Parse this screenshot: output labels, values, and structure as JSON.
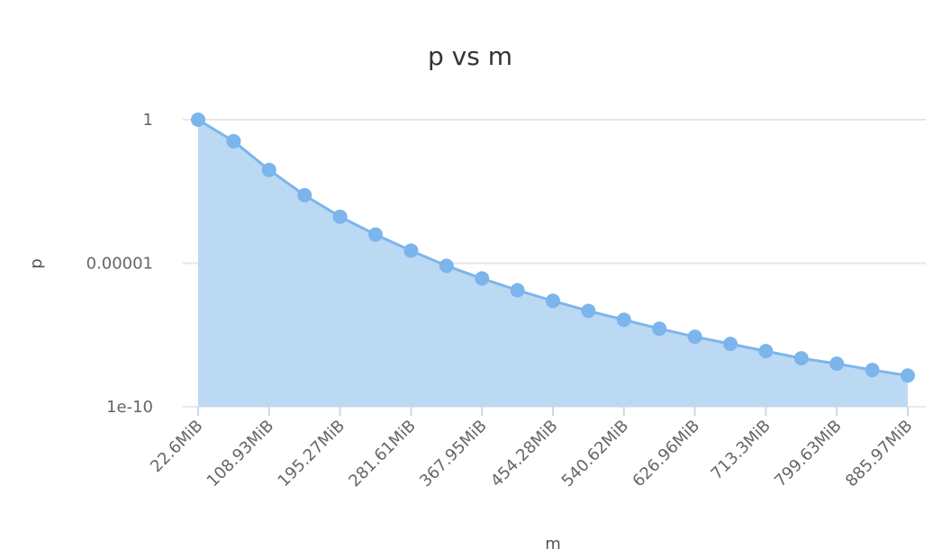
{
  "chart_data": {
    "type": "area",
    "title": "p vs m",
    "xlabel": "m",
    "ylabel": "p",
    "yscale": "log",
    "ylim": [
      1e-10,
      1
    ],
    "ytick_labels": [
      "1",
      "0.00001",
      "1e-10"
    ],
    "ytick_values": [
      1,
      1e-05,
      1e-10
    ],
    "xlim": [
      22.6,
      885.97
    ],
    "xtick_values": [
      22.6,
      108.93,
      195.27,
      281.61,
      367.95,
      454.28,
      540.62,
      626.96,
      713.3,
      799.63,
      885.97
    ],
    "xtick_labels": [
      "22.6MiB",
      "108.93MiB",
      "195.27MiB",
      "281.61MiB",
      "367.95MiB",
      "454.28MiB",
      "540.62MiB",
      "626.96MiB",
      "713.3MiB",
      "799.63MiB",
      "885.97MiB"
    ],
    "series": [
      {
        "name": "p",
        "color": "#7cb5ec",
        "fill": "#bcd9f3",
        "x": [
          22.6,
          65.77,
          108.93,
          152.1,
          195.27,
          238.44,
          281.61,
          324.78,
          367.95,
          411.12,
          454.28,
          497.45,
          540.62,
          583.79,
          626.96,
          670.13,
          713.3,
          756.47,
          799.63,
          842.8,
          885.97
        ],
        "log10_y": [
          0,
          -0.75,
          -1.75,
          -2.63,
          -3.38,
          -4.0,
          -4.56,
          -5.09,
          -5.53,
          -5.94,
          -6.31,
          -6.66,
          -6.97,
          -7.28,
          -7.56,
          -7.81,
          -8.06,
          -8.31,
          -8.5,
          -8.72,
          -8.91
        ]
      }
    ],
    "grid": true,
    "legend": "none"
  }
}
